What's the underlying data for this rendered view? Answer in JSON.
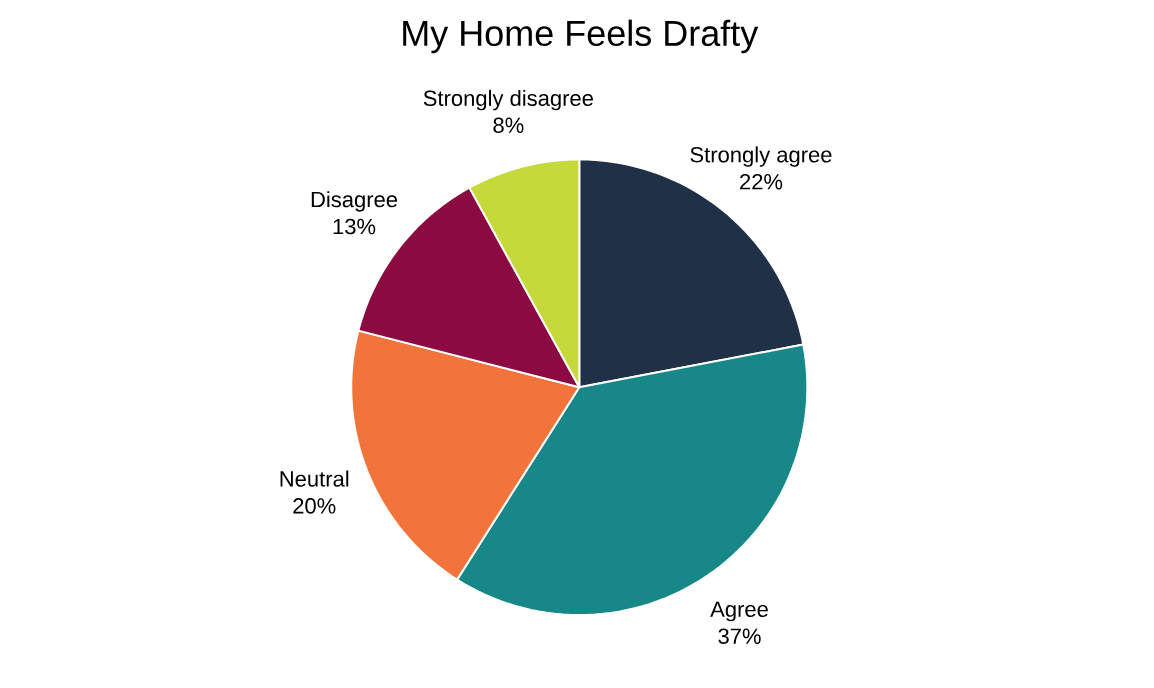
{
  "chart_data": {
    "type": "pie",
    "title": "My Home Feels Drafty",
    "categories": [
      "Strongly agree",
      "Agree",
      "Neutral",
      "Disagree",
      "Strongly disagree"
    ],
    "values": [
      22,
      37,
      20,
      13,
      8
    ],
    "value_labels": [
      "22%",
      "37%",
      "20%",
      "13%",
      "8%"
    ],
    "colors": [
      "#203047",
      "#178887",
      "#f2743a",
      "#8b0a41",
      "#c5da3a"
    ]
  }
}
